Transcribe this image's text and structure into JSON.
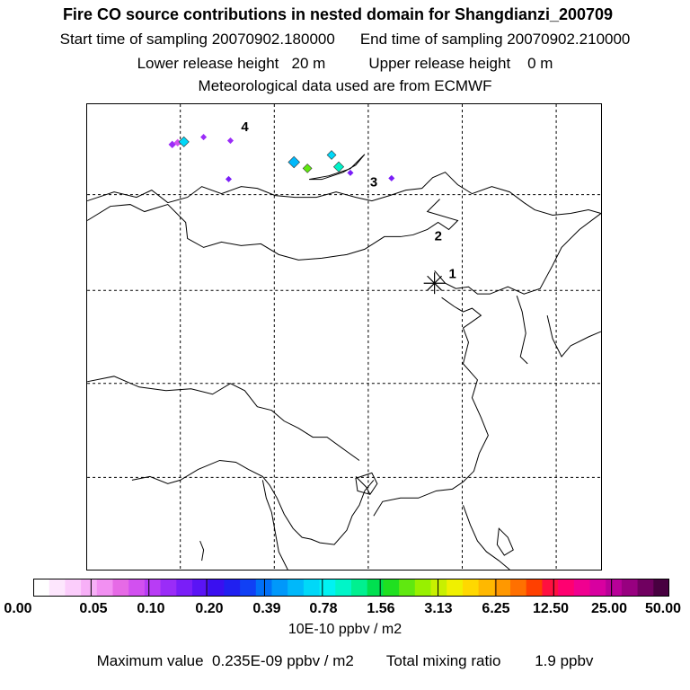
{
  "header": {
    "title": "Fire CO source contributions in nested domain for Shangdianzi_200709",
    "start_sampling": "Start time of sampling 20070902.180000",
    "end_sampling": "End time of sampling 20070902.210000",
    "lower_release": "Lower release height   20 m",
    "upper_release": "Upper release height    0 m",
    "met_data": "Meteorological data used are from ECMWF"
  },
  "map": {
    "station_labels": [
      "1",
      "2",
      "3",
      "4"
    ]
  },
  "colorbar": {
    "colors": [
      "#ffffff",
      "#fde6fd",
      "#fbcdfb",
      "#f7b0f7",
      "#f290f2",
      "#e66ae6",
      "#d250f0",
      "#b83cf5",
      "#9a2cf8",
      "#7a1ef8",
      "#5a14f5",
      "#3a0ff0",
      "#2020f0",
      "#1040f5",
      "#0070f8",
      "#0098fa",
      "#00b8fa",
      "#00d8f8",
      "#00f2f2",
      "#00f5c8",
      "#00f090",
      "#00e050",
      "#20e020",
      "#60e810",
      "#98f000",
      "#c8f000",
      "#f0f000",
      "#ffd800",
      "#ffb800",
      "#ff9800",
      "#ff7000",
      "#ff4000",
      "#ff1040",
      "#ff0070",
      "#f00090",
      "#d800a0",
      "#b80098",
      "#980080",
      "#700060",
      "#480040"
    ],
    "tick_labels": [
      "0.00",
      "0.05",
      "0.10",
      "0.20",
      "0.39",
      "0.78",
      "1.56",
      "3.13",
      "6.25",
      "12.50",
      "25.00",
      "50.00"
    ],
    "units": "10E-10 ppbv / m2"
  },
  "stats": {
    "max_value": "Maximum value  0.235E-09 ppbv / m2",
    "total_mixing": "Total mixing ratio        1.9 ppbv"
  }
}
